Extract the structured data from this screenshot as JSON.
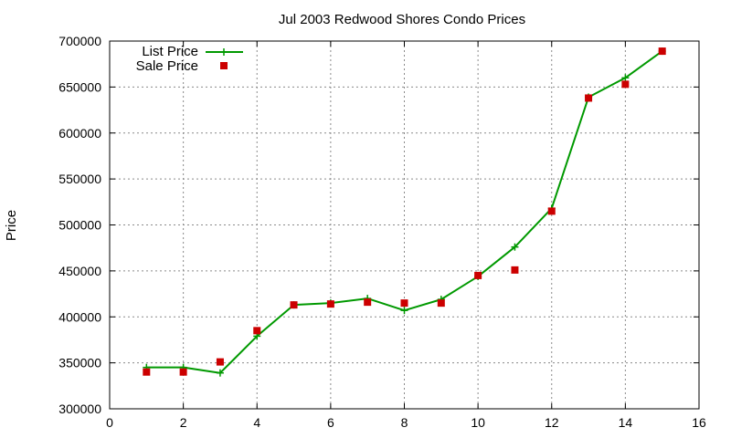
{
  "chart_data": {
    "type": "line",
    "title": "Jul 2003 Redwood Shores Condo Prices",
    "xlabel": "",
    "ylabel": "Price",
    "xlim": [
      0,
      16
    ],
    "ylim": [
      300000,
      700000
    ],
    "x_ticks": [
      "0",
      "2",
      "4",
      "6",
      "8",
      "10",
      "12",
      "14",
      "16"
    ],
    "y_ticks": [
      "300000",
      "350000",
      "400000",
      "450000",
      "500000",
      "550000",
      "600000",
      "650000",
      "700000"
    ],
    "grid": true,
    "legend_position": "top-left",
    "series": [
      {
        "name": "List Price",
        "type": "line",
        "color": "#009900",
        "marker": "plus",
        "x": [
          1,
          2,
          3,
          4,
          5,
          6,
          7,
          8,
          9,
          10,
          11,
          12,
          13,
          14,
          15
        ],
        "values": [
          345000,
          345000,
          339000,
          379000,
          413000,
          415000,
          420000,
          407000,
          419000,
          444000,
          476000,
          518000,
          639000,
          660000,
          689000
        ]
      },
      {
        "name": "Sale Price",
        "type": "scatter",
        "color": "#cc0000",
        "marker": "square",
        "x": [
          1,
          2,
          3,
          4,
          5,
          6,
          7,
          8,
          9,
          10,
          11,
          12,
          13,
          14,
          15
        ],
        "values": [
          340000,
          340000,
          351000,
          385000,
          413000,
          414000,
          416000,
          415000,
          415000,
          445000,
          451000,
          515000,
          638000,
          653000,
          689000
        ]
      }
    ]
  }
}
